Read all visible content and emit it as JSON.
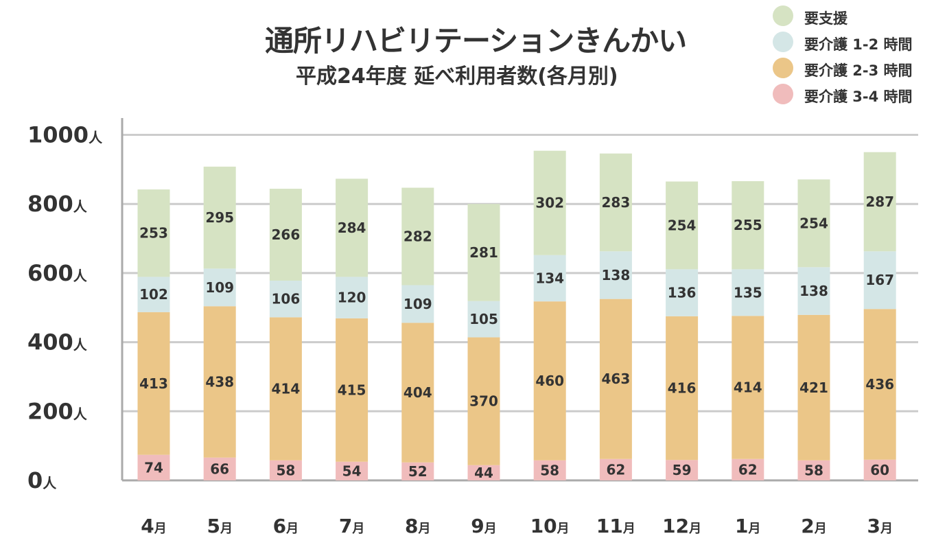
{
  "chart_data": {
    "type": "bar",
    "stacked": true,
    "title": "通所リハビリテーションきんかい",
    "subtitle": "平成24年度 延べ利用者数(各月別)",
    "categories": [
      "4",
      "5",
      "6",
      "7",
      "8",
      "9",
      "10",
      "11",
      "12",
      "1",
      "2",
      "3"
    ],
    "category_unit": "月",
    "series": [
      {
        "name": "要介護 3-4 時間",
        "color": "#f0bcbc",
        "values": [
          74,
          66,
          58,
          54,
          52,
          44,
          58,
          62,
          59,
          62,
          58,
          60
        ]
      },
      {
        "name": "要介護 2-3 時間",
        "color": "#ebc688",
        "values": [
          413,
          438,
          414,
          415,
          404,
          370,
          460,
          463,
          416,
          414,
          421,
          436
        ]
      },
      {
        "name": "要介護 1-2 時間",
        "color": "#d4e6e6",
        "values": [
          102,
          109,
          106,
          120,
          109,
          105,
          134,
          138,
          136,
          135,
          138,
          167
        ]
      },
      {
        "name": "要支援",
        "color": "#d6e3c3",
        "values": [
          253,
          295,
          266,
          284,
          282,
          281,
          302,
          283,
          254,
          255,
          254,
          287
        ]
      }
    ],
    "legend_order": [
      "要支援",
      "要介護 1-2 時間",
      "要介護 2-3 時間",
      "要介護 3-4 時間"
    ],
    "yticks": [
      0,
      200,
      400,
      600,
      800,
      1000
    ],
    "y_unit": "人",
    "ylim": [
      0,
      1050
    ],
    "grid": true,
    "legend_position": "top-right",
    "colors": {
      "grid": "#cccccc",
      "axis": "#aaaaaa",
      "text": "#333333"
    }
  }
}
